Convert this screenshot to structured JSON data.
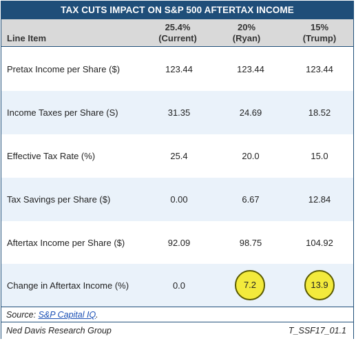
{
  "title": "TAX CUTS IMPACT ON  S&P 500 AFTERTAX INCOME",
  "header": {
    "line_item": "Line Item",
    "col1_line1": "25.4%",
    "col1_line2": "(Current)",
    "col2_line1": "20%",
    "col2_line2": "(Ryan)",
    "col3_line1": "15%",
    "col3_line2": "(Trump)"
  },
  "chart_data": {
    "type": "table",
    "title": "TAX CUTS IMPACT ON  S&P 500 AFTERTAX INCOME",
    "columns": [
      "Line Item",
      "25.4% (Current)",
      "20% (Ryan)",
      "15% (Trump)"
    ],
    "rows": [
      {
        "label": "Pretax Income per Share ($)",
        "values": [
          "123.44",
          "123.44",
          "123.44"
        ]
      },
      {
        "label": "Income Taxes per Share (S)",
        "values": [
          "31.35",
          "24.69",
          "18.52"
        ]
      },
      {
        "label": "Effective Tax Rate (%)",
        "values": [
          "25.4",
          "20.0",
          "15.0"
        ]
      },
      {
        "label": "Tax Savings per Share ($)",
        "values": [
          "0.00",
          "6.67",
          "12.84"
        ]
      },
      {
        "label": "Aftertax Income per Share ($)",
        "values": [
          "92.09",
          "98.75",
          "104.92"
        ]
      },
      {
        "label": "Change in Aftertax Income (%)",
        "values": [
          "0.0",
          "7.2",
          "13.9"
        ]
      }
    ],
    "highlighted": [
      "7.2",
      "13.9"
    ],
    "highlight_color": "#f3ea3c",
    "header_color": "#1f4e79",
    "alt_row_color": "#eaf2fa"
  },
  "footer": {
    "source_prefix": "Source: ",
    "source_link": "S&P Capital IQ",
    "source_suffix": ".",
    "publisher": "Ned Davis Research Group",
    "code": "T_SSF17_01.1"
  }
}
